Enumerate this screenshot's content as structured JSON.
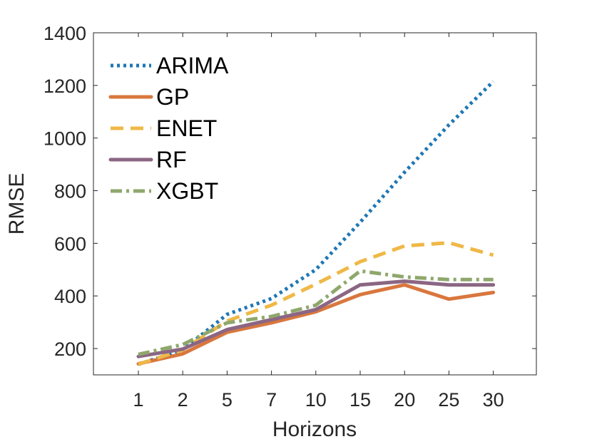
{
  "chart_data": {
    "type": "line",
    "title": "",
    "xlabel": "Horizons",
    "ylabel": "RMSE",
    "categories": [
      "1",
      "2",
      "5",
      "7",
      "10",
      "15",
      "20",
      "25",
      "30"
    ],
    "ylim": [
      100,
      1400
    ],
    "yticks": [
      200,
      400,
      600,
      800,
      1000,
      1200,
      1400
    ],
    "grid": false,
    "legend_position": "top-left",
    "series": [
      {
        "name": "ARIMA",
        "color": "#1f77b4",
        "style": "dotted",
        "values": [
          140,
          195,
          330,
          390,
          500,
          680,
          870,
          1050,
          1215
        ]
      },
      {
        "name": "GP",
        "color": "#d9773e",
        "style": "solid",
        "values": [
          142,
          180,
          262,
          298,
          340,
          405,
          442,
          388,
          413
        ]
      },
      {
        "name": "ENET",
        "color": "#efb847",
        "style": "dashed",
        "values": [
          140,
          195,
          305,
          365,
          445,
          530,
          590,
          602,
          555
        ]
      },
      {
        "name": "RF",
        "color": "#8b6683",
        "style": "solid",
        "values": [
          170,
          198,
          272,
          310,
          348,
          442,
          456,
          442,
          442
        ]
      },
      {
        "name": "XGBT",
        "color": "#8fa76c",
        "style": "dashdot",
        "values": [
          178,
          215,
          298,
          322,
          365,
          495,
          472,
          462,
          462
        ]
      }
    ]
  }
}
